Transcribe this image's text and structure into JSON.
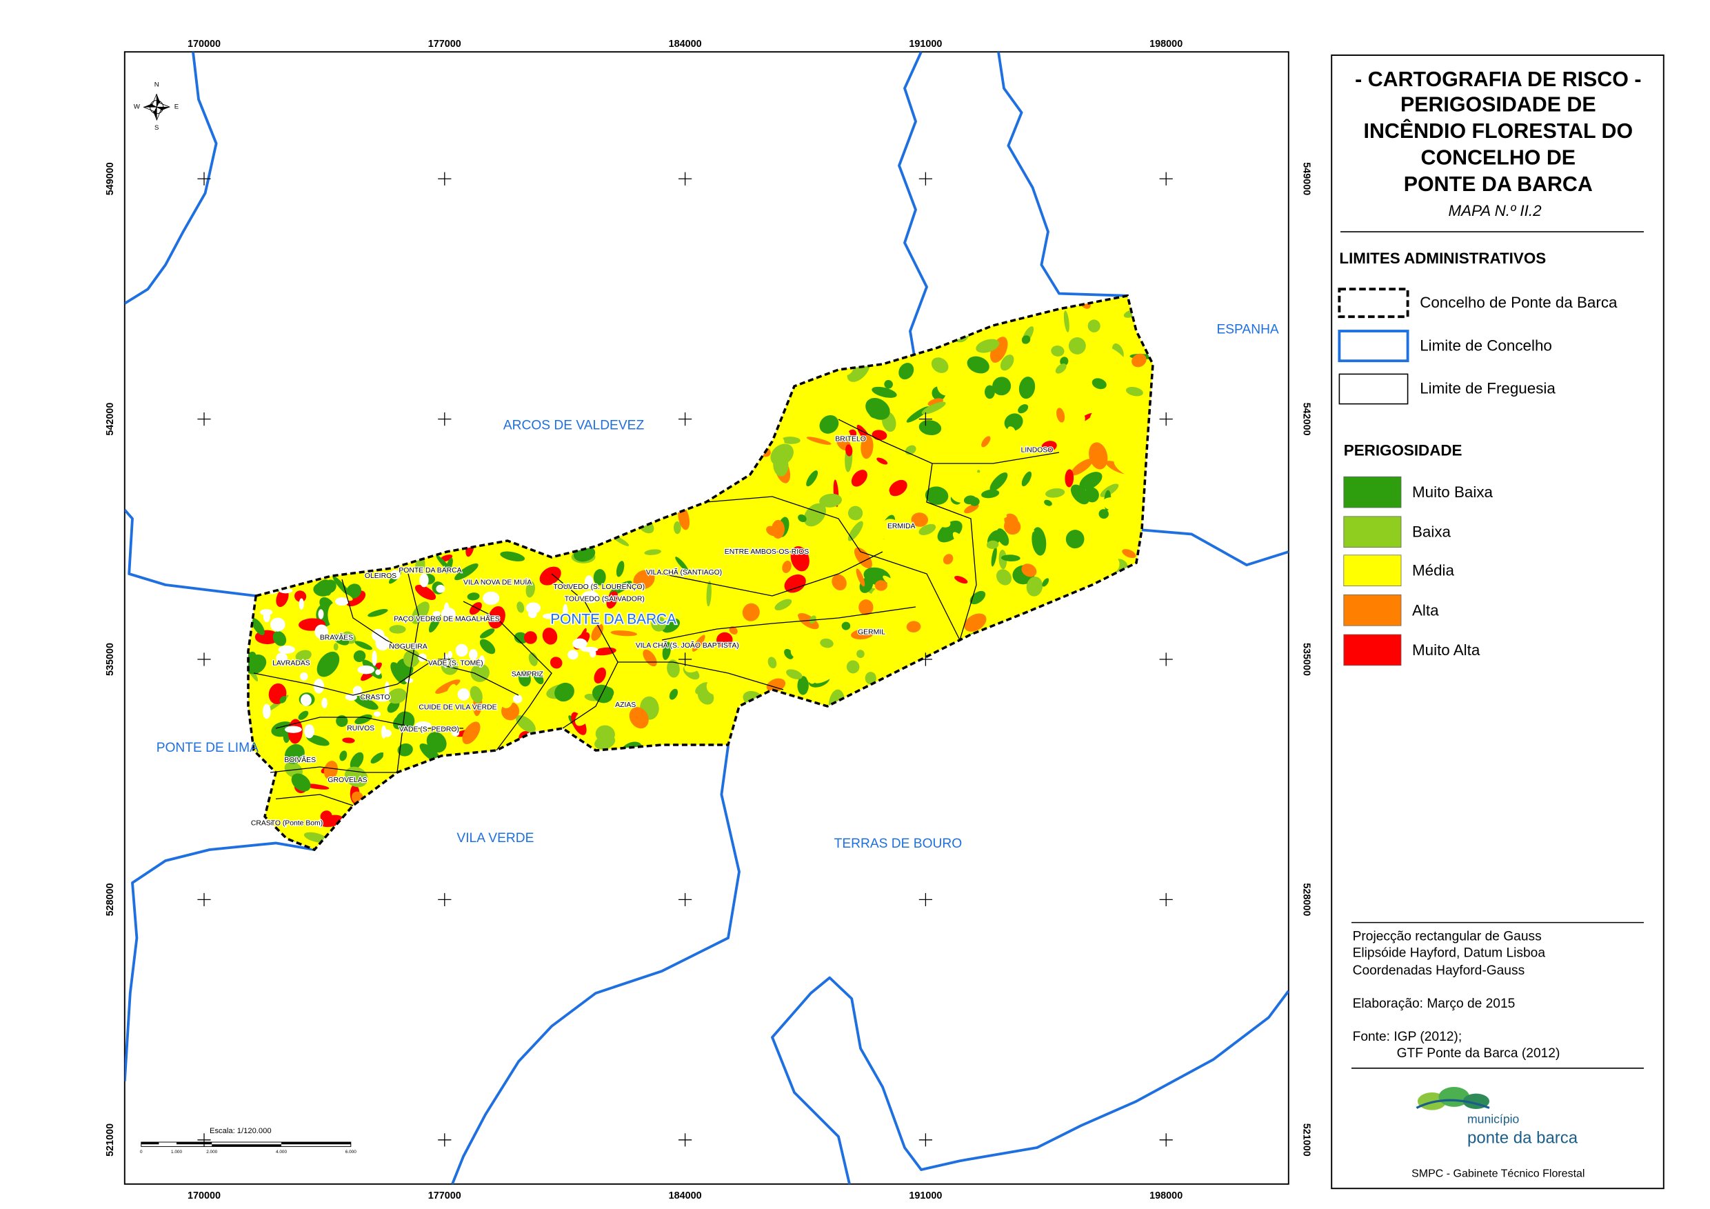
{
  "map": {
    "xticks": [
      170000,
      177000,
      184000,
      191000,
      198000
    ],
    "yticks": [
      521000,
      528000,
      535000,
      542000,
      549000
    ],
    "region_labels": [
      "ARCOS DE VALDEVEZ",
      "ESPANHA",
      "PONTE DE LIMA",
      "VILA VERDE",
      "TERRAS DE BOURO",
      "PONTE DA BARCA"
    ],
    "parish_labels": [
      "LINDOSO",
      "BRITELO",
      "ERMIDA",
      "ENTRE AMBOS-OS-RIOS",
      "VILA CHÃ (SANTIAGO)",
      "TOUVEDO (S. LOURENÇO)",
      "TOUVEDO (SALVADOR)",
      "GERMIL",
      "VILA CHÃ (S. JOÃO BAPTISTA)",
      "AZIAS",
      "SAMPRIZ",
      "PONTE DA BARCA",
      "VILA NOVA DE MUÍA",
      "OLEIROS",
      "PAÇO VEDRO DE MAGALHÃES",
      "BRAVÃES",
      "NOGUEIRA",
      "LAVRADAS",
      "VADE (S. TOMÉ)",
      "CRASTO",
      "CUIDE DE VILA VERDE",
      "RUIVOS",
      "VADE (S. PEDRO)",
      "BOIVÃES",
      "GROVELAS",
      "CRASTO (Ponte Bom)"
    ],
    "compass": [
      "N",
      "E",
      "S",
      "W"
    ],
    "scale_text": "Escala: 1/120.000",
    "scale_bar_labels": [
      "0",
      "1.000",
      "2.000",
      "4.000",
      "6.000"
    ]
  },
  "panel": {
    "title_lines": [
      "- CARTOGRAFIA DE RISCO -",
      "PERIGOSIDADE DE",
      "INCÊNDIO FLORESTAL DO",
      "CONCELHO DE",
      "PONTE DA BARCA"
    ],
    "map_number": "MAPA N.º II.2",
    "admin_title": "LIMITES ADMINISTRATIVOS",
    "admin_items": [
      "Concelho de Ponte da Barca",
      "Limite de Concelho",
      "Limite de Freguesia"
    ],
    "hazard_title": "PERIGOSIDADE",
    "hazard_classes": [
      {
        "label": "Muito Baixa",
        "color": "#2e9e0e"
      },
      {
        "label": "Baixa",
        "color": "#8fce1e"
      },
      {
        "label": "Média",
        "color": "#ffff00"
      },
      {
        "label": "Alta",
        "color": "#ff8000"
      },
      {
        "label": "Muito Alta",
        "color": "#ff0000"
      }
    ],
    "notes": [
      "Projecção rectangular de Gauss",
      "Elipsóide Hayford, Datum Lisboa",
      "Coordenadas Hayford-Gauss",
      "Elaboração: Março de 2015",
      "Fonte: IGP (2012);",
      "GTF Ponte da Barca (2012)"
    ],
    "logo": [
      "município",
      "ponte da barca"
    ],
    "footer": "SMPC - Gabinete Técnico Florestal"
  }
}
